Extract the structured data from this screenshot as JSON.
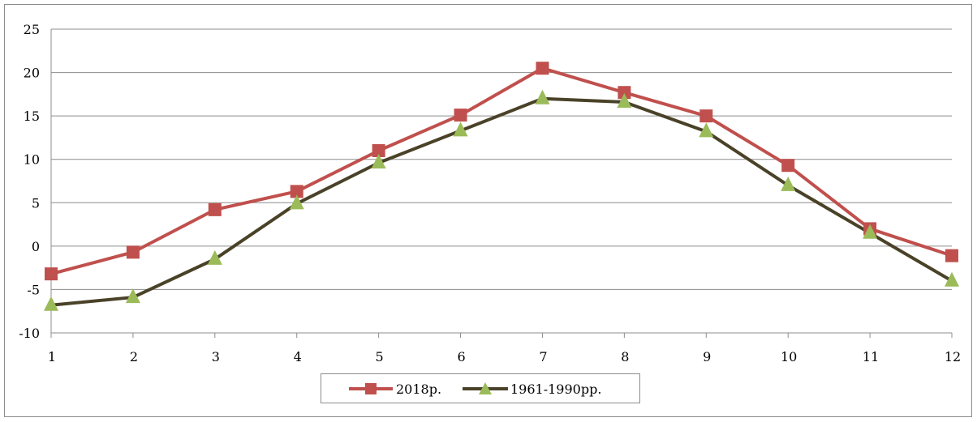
{
  "chart_data": {
    "type": "line",
    "x": [
      1,
      2,
      3,
      4,
      5,
      6,
      7,
      8,
      9,
      10,
      11,
      12
    ],
    "xlabel": "",
    "ylabel": "",
    "ylim": [
      -10,
      25
    ],
    "yticks": [
      25,
      20,
      15,
      10,
      5,
      0,
      -5,
      -10
    ],
    "grid": true,
    "legend": "bottom-center",
    "series": [
      {
        "name": "2018р.",
        "color": "#c0504d",
        "marker": "square",
        "values": [
          -3.2,
          -0.7,
          4.2,
          6.3,
          11.0,
          15.1,
          20.5,
          17.7,
          15.0,
          9.3,
          2.0,
          -1.1
        ]
      },
      {
        "name": "1961-1990рр.",
        "color": "#4a4228",
        "marker": "triangle",
        "marker_fill": "#9bbb59",
        "values": [
          -6.8,
          -5.9,
          -1.5,
          4.9,
          9.6,
          13.3,
          17.0,
          16.6,
          13.2,
          7.0,
          1.5,
          -4.0
        ]
      }
    ]
  }
}
